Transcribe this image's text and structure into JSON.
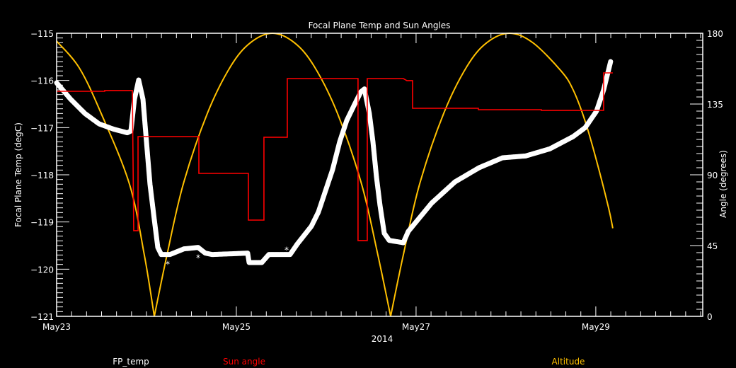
{
  "chart_data": {
    "type": "line",
    "title": "Focal Plane Temp and Sun Angles",
    "xlabel": "2014",
    "ylabel_left": "Focal Plane Temp (degC)",
    "ylabel_right": "Angle (degrees)",
    "x_unit": "days since May23 00:00",
    "xlim": [
      0,
      7.19
    ],
    "ylim_left": [
      -121,
      -115
    ],
    "ylim_right": [
      0,
      180
    ],
    "x_ticks": [
      {
        "value": 0,
        "label": "May23"
      },
      {
        "value": 2,
        "label": "May25"
      },
      {
        "value": 4,
        "label": "May27"
      },
      {
        "value": 6,
        "label": "May29"
      }
    ],
    "y_ticks_left": [
      {
        "value": -115,
        "label": "−115"
      },
      {
        "value": -116,
        "label": "−116"
      },
      {
        "value": -117,
        "label": "−117"
      },
      {
        "value": -118,
        "label": "−118"
      },
      {
        "value": -119,
        "label": "−119"
      },
      {
        "value": -120,
        "label": "−120"
      },
      {
        "value": -121,
        "label": "−121"
      }
    ],
    "y_ticks_right": [
      {
        "value": 180,
        "label": "180"
      },
      {
        "value": 135,
        "label": "135"
      },
      {
        "value": 90,
        "label": "90"
      },
      {
        "value": 45,
        "label": "45"
      },
      {
        "value": 0,
        "label": "0"
      }
    ],
    "grid": false,
    "legend_position": "bottom",
    "series": [
      {
        "name": "FP_temp",
        "axis": "left",
        "color": "#ffffff",
        "style": "asterisk",
        "points": [
          [
            0,
            -116.05
          ],
          [
            0.157,
            -116.4
          ],
          [
            0.315,
            -116.7
          ],
          [
            0.472,
            -116.92
          ],
          [
            0.63,
            -117.03
          ],
          [
            0.787,
            -117.11
          ],
          [
            0.827,
            -117.07
          ],
          [
            0.866,
            -116.4
          ],
          [
            0.913,
            -115.99
          ],
          [
            0.961,
            -116.4
          ],
          [
            1.0,
            -117.3
          ],
          [
            1.039,
            -118.2
          ],
          [
            1.087,
            -118.95
          ],
          [
            1.126,
            -119.54
          ],
          [
            1.165,
            -119.69
          ],
          [
            1.26,
            -119.69
          ],
          [
            1.417,
            -119.57
          ],
          [
            1.575,
            -119.54
          ],
          [
            1.654,
            -119.66
          ],
          [
            1.732,
            -119.69
          ],
          [
            2.126,
            -119.66
          ],
          [
            2.142,
            -119.86
          ],
          [
            2.283,
            -119.86
          ],
          [
            2.362,
            -119.69
          ],
          [
            2.598,
            -119.69
          ],
          [
            2.677,
            -119.47
          ],
          [
            2.835,
            -119.09
          ],
          [
            2.913,
            -118.79
          ],
          [
            2.992,
            -118.34
          ],
          [
            3.071,
            -117.89
          ],
          [
            3.15,
            -117.3
          ],
          [
            3.228,
            -116.85
          ],
          [
            3.307,
            -116.54
          ],
          [
            3.386,
            -116.24
          ],
          [
            3.425,
            -116.18
          ],
          [
            3.48,
            -116.7
          ],
          [
            3.52,
            -117.3
          ],
          [
            3.559,
            -118.04
          ],
          [
            3.598,
            -118.64
          ],
          [
            3.646,
            -119.24
          ],
          [
            3.701,
            -119.39
          ],
          [
            3.858,
            -119.44
          ],
          [
            3.913,
            -119.2
          ],
          [
            4.173,
            -118.6
          ],
          [
            4.433,
            -118.15
          ],
          [
            4.701,
            -117.85
          ],
          [
            4.961,
            -117.64
          ],
          [
            5.22,
            -117.6
          ],
          [
            5.488,
            -117.45
          ],
          [
            5.748,
            -117.19
          ],
          [
            5.882,
            -117.0
          ],
          [
            6.008,
            -116.65
          ],
          [
            6.087,
            -116.2
          ],
          [
            6.165,
            -115.6
          ]
        ],
        "outliers": [
          [
            1.236,
            -119.85
          ],
          [
            1.575,
            -119.72
          ],
          [
            2.559,
            -119.55
          ]
        ]
      },
      {
        "name": "Sun angle",
        "axis": "right",
        "color": "#ff0000",
        "style": "step",
        "points": [
          [
            0,
            143.1
          ],
          [
            0.535,
            143.1
          ],
          [
            0.535,
            143.6
          ],
          [
            0.843,
            143.6
          ],
          [
            0.858,
            54.5
          ],
          [
            0.906,
            54.5
          ],
          [
            0.906,
            114.3
          ],
          [
            1.583,
            114.3
          ],
          [
            1.583,
            90.9
          ],
          [
            2.134,
            90.9
          ],
          [
            2.134,
            61.2
          ],
          [
            2.307,
            61.2
          ],
          [
            2.307,
            113.9
          ],
          [
            2.567,
            113.9
          ],
          [
            2.567,
            151.2
          ],
          [
            3.354,
            151.2
          ],
          [
            3.354,
            48.2
          ],
          [
            3.457,
            48.2
          ],
          [
            3.457,
            151.2
          ],
          [
            3.858,
            151.2
          ],
          [
            3.898,
            149.9
          ],
          [
            3.961,
            149.9
          ],
          [
            3.961,
            132.3
          ],
          [
            4.693,
            132.3
          ],
          [
            4.693,
            131.4
          ],
          [
            5.394,
            131.4
          ],
          [
            5.394,
            131
          ],
          [
            6.087,
            131
          ],
          [
            6.087,
            154.8
          ],
          [
            6.189,
            154.8
          ]
        ]
      },
      {
        "name": "Altitude",
        "axis": "right",
        "color": "#ffc000",
        "style": "line",
        "points": [
          [
            0,
            175
          ],
          [
            0.252,
            158
          ],
          [
            0.496,
            129
          ],
          [
            0.811,
            84
          ],
          [
            0.976,
            39
          ],
          [
            1.087,
            0
          ],
          [
            1.228,
            39
          ],
          [
            1.409,
            84
          ],
          [
            1.677,
            129
          ],
          [
            1.937,
            159
          ],
          [
            2.157,
            174
          ],
          [
            2.402,
            180
          ],
          [
            2.646,
            174
          ],
          [
            2.866,
            159
          ],
          [
            3.126,
            129
          ],
          [
            3.394,
            84
          ],
          [
            3.575,
            39
          ],
          [
            3.717,
            0
          ],
          [
            3.858,
            39
          ],
          [
            4.039,
            84
          ],
          [
            4.307,
            129
          ],
          [
            4.567,
            159
          ],
          [
            4.787,
            174
          ],
          [
            5.039,
            180
          ],
          [
            5.299,
            174
          ],
          [
            5.614,
            156
          ],
          [
            5.748,
            144
          ],
          [
            5.882,
            124
          ],
          [
            6.008,
            99
          ],
          [
            6.142,
            69
          ],
          [
            6.189,
            56
          ]
        ]
      }
    ]
  }
}
